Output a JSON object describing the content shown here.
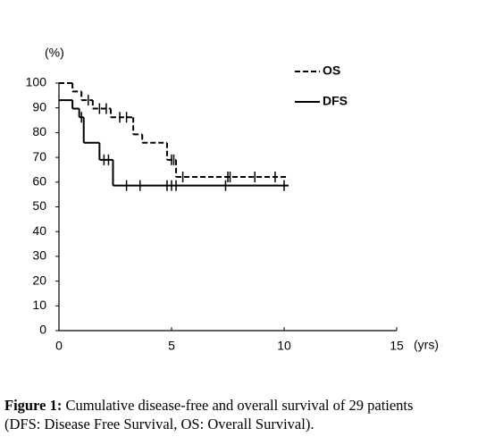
{
  "chart_data": {
    "type": "step",
    "y_unit_label": "(%)",
    "x_unit_label": "(yrs)",
    "xlim": [
      0,
      15
    ],
    "ylim": [
      0,
      100
    ],
    "xticks": [
      0,
      5,
      10,
      15
    ],
    "yticks": [
      0,
      10,
      20,
      30,
      40,
      50,
      60,
      70,
      80,
      90,
      100
    ],
    "legend": "top-right",
    "series": [
      {
        "name": "OS",
        "color": "#000000",
        "dash": true,
        "x": [
          0,
          0.6,
          1.0,
          1.5,
          2.3,
          3.3,
          3.7,
          4.8,
          5.2,
          10.2
        ],
        "values": [
          100,
          96.6,
          93.1,
          89.7,
          86.2,
          79.3,
          75.9,
          69.0,
          62.1,
          62.1
        ],
        "censored_x": [
          1.3,
          1.8,
          2.1,
          2.7,
          3.0,
          5.0,
          5.1,
          5.5,
          7.5,
          7.6,
          8.7,
          9.6
        ],
        "censored_values": [
          93.1,
          89.7,
          89.7,
          86.2,
          86.2,
          69.0,
          69.0,
          62.1,
          62.1,
          62.1,
          62.1,
          62.1
        ]
      },
      {
        "name": "DFS",
        "color": "#000000",
        "dash": false,
        "x": [
          0,
          0.6,
          0.9,
          1.1,
          1.8,
          2.4,
          10.2
        ],
        "values": [
          93.1,
          89.7,
          86.2,
          75.9,
          69.0,
          58.6,
          58.6
        ],
        "censored_x": [
          1.0,
          2.0,
          2.2,
          3.0,
          3.6,
          4.8,
          5.0,
          5.2,
          7.4,
          10.0
        ],
        "censored_values": [
          86.2,
          69.0,
          69.0,
          58.6,
          58.6,
          58.6,
          58.6,
          58.6,
          58.6,
          58.6
        ]
      }
    ],
    "caption_label": "Figure 1:",
    "caption_lines": [
      "Cumulative disease-free and overall survival of 29 patients",
      "(DFS: Disease Free Survival, OS: Overall Survival)."
    ]
  }
}
